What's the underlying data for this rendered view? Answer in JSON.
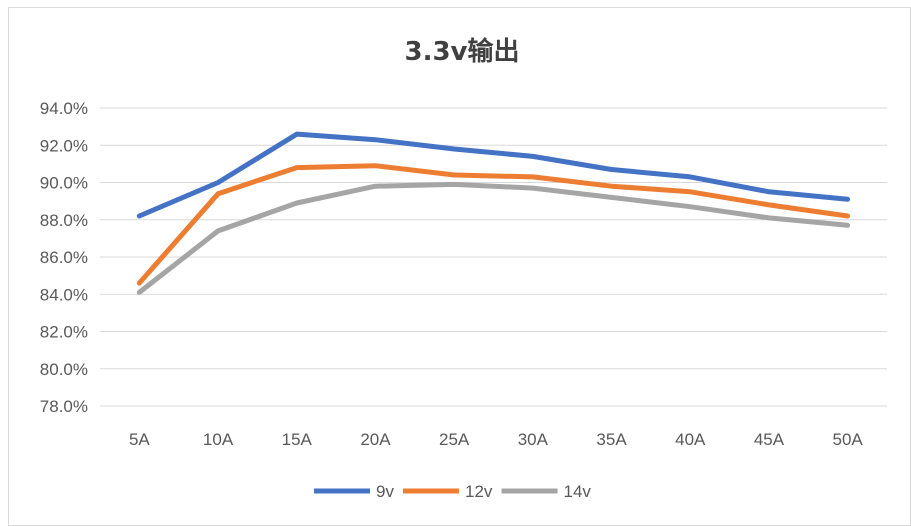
{
  "chart_data": {
    "type": "line",
    "title": "3.3v输出",
    "xlabel": "",
    "ylabel": "",
    "categories": [
      "5A",
      "10A",
      "15A",
      "20A",
      "25A",
      "30A",
      "35A",
      "40A",
      "45A",
      "50A"
    ],
    "ylim": [
      78.0,
      94.0
    ],
    "yticks": [
      "78.0%",
      "80.0%",
      "82.0%",
      "84.0%",
      "86.0%",
      "88.0%",
      "90.0%",
      "92.0%",
      "94.0%"
    ],
    "grid": true,
    "legend_position": "bottom",
    "series": [
      {
        "name": "9v",
        "color": "#4472c4",
        "values": [
          88.2,
          90.0,
          92.6,
          92.3,
          91.8,
          91.4,
          90.7,
          90.3,
          89.5,
          89.1
        ]
      },
      {
        "name": "12v",
        "color": "#ed7d31",
        "values": [
          84.6,
          89.4,
          90.8,
          90.9,
          90.4,
          90.3,
          89.8,
          89.5,
          88.8,
          88.2
        ]
      },
      {
        "name": "14v",
        "color": "#a5a5a5",
        "values": [
          84.1,
          87.4,
          88.9,
          89.8,
          89.9,
          89.7,
          89.2,
          88.7,
          88.1,
          87.7
        ]
      }
    ]
  }
}
